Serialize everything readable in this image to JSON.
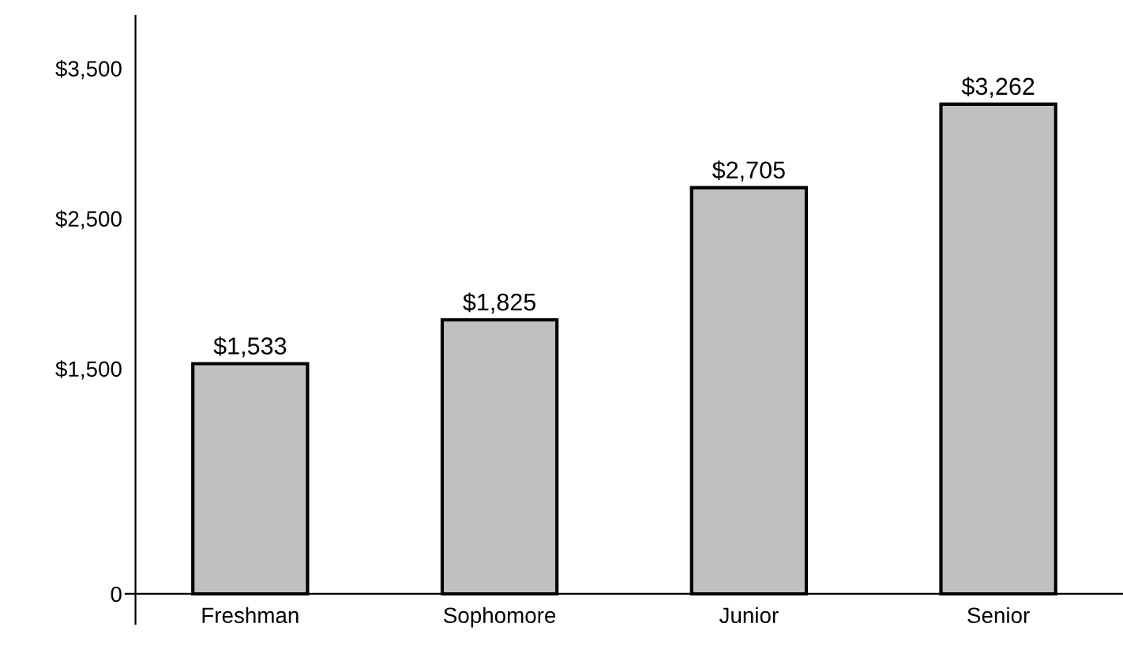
{
  "chart_data": {
    "type": "bar",
    "categories": [
      "Freshman",
      "Sophomore",
      "Junior",
      "Senior"
    ],
    "values": [
      1533,
      1825,
      2705,
      3262
    ],
    "color": "#c0c0c0",
    "data_labels": true,
    "value_labels": [
      "$1,533",
      "$1,825",
      "$2,705",
      "$3,262"
    ],
    "ylim": [
      -200,
      3850
    ],
    "yticks": [
      0,
      {
        "value": 1500,
        "label": "$1,500"
      },
      {
        "value": 2500,
        "label": "$2,500"
      },
      {
        "value": 3500,
        "label": "$3,500"
      }
    ],
    "grid": false,
    "legend": false
  }
}
